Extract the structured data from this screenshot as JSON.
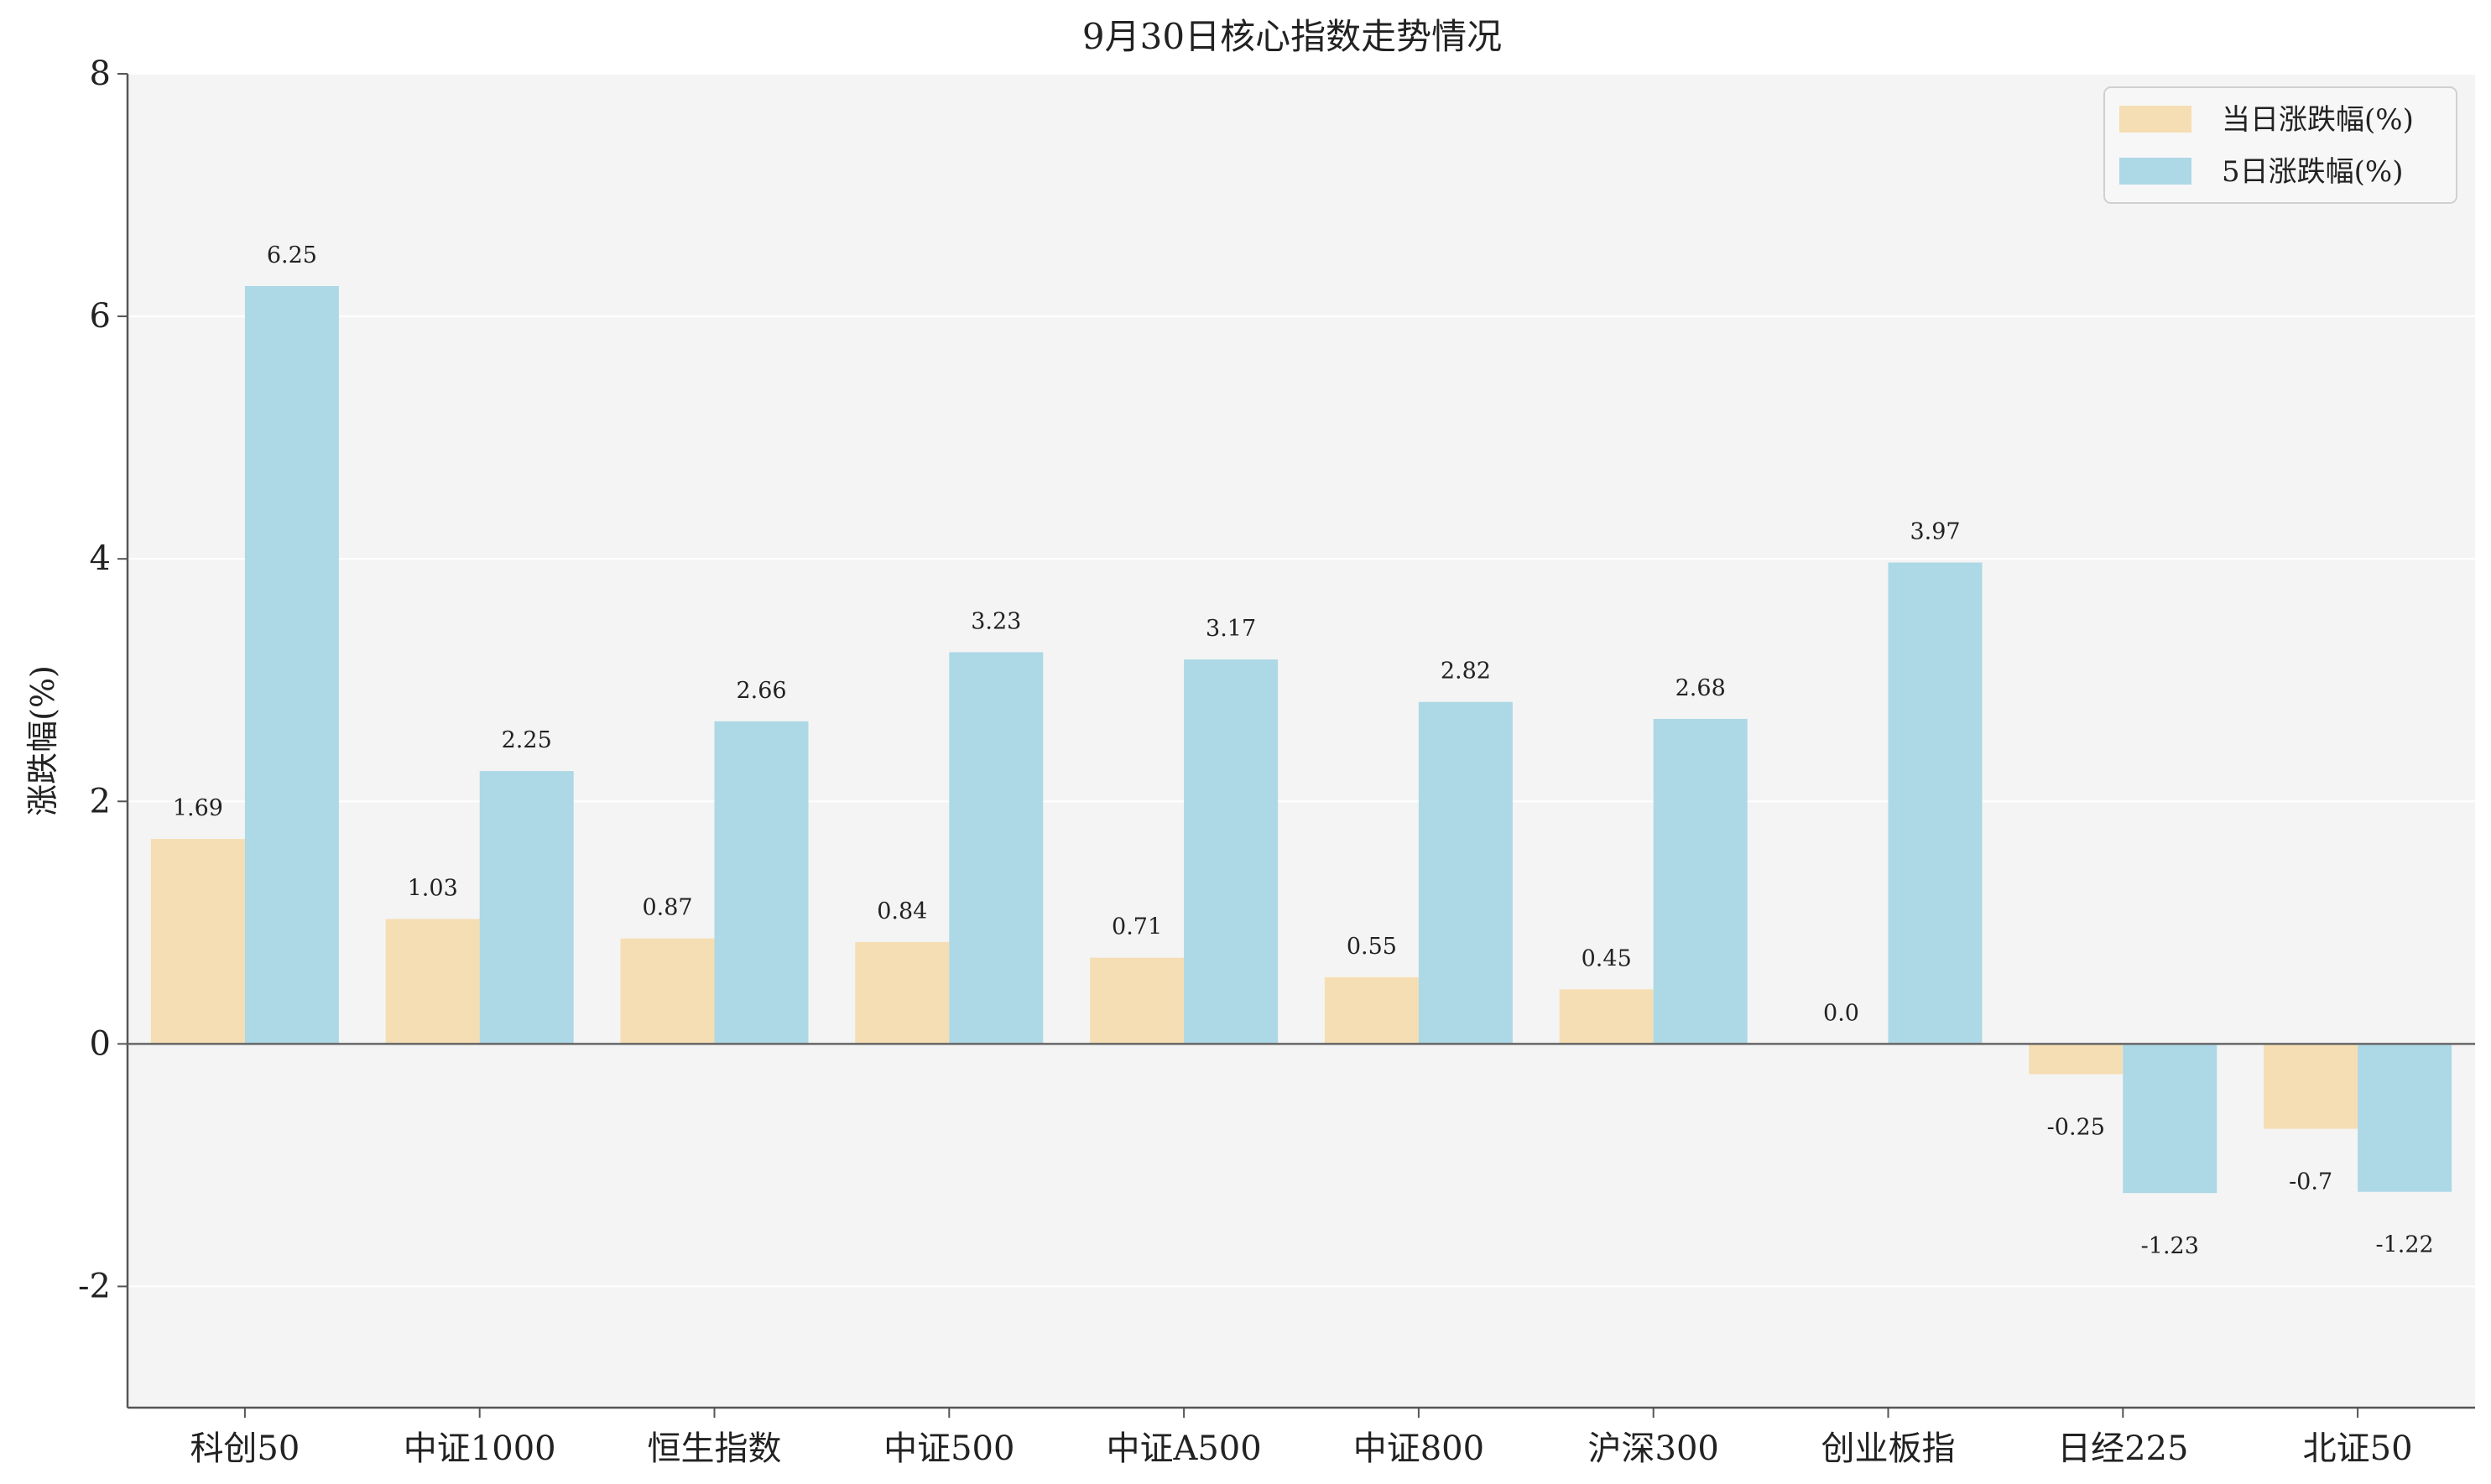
{
  "chart_data": {
    "type": "bar",
    "title": "9月30日核心指数走势情况",
    "xlabel": "",
    "ylabel": "涨跌幅(%)",
    "ylim": [
      -3,
      8
    ],
    "yticks": [
      -2,
      0,
      2,
      4,
      6,
      8
    ],
    "grid": "horizontal",
    "legend_position": "top-right",
    "categories": [
      "科创50",
      "中证1000",
      "恒生指数",
      "中证500",
      "中证A500",
      "中证800",
      "沪深300",
      "创业板指",
      "日经225",
      "北证50"
    ],
    "series": [
      {
        "name": "当日涨跌幅(%)",
        "color": "#f5deb3",
        "values": [
          1.69,
          1.03,
          0.87,
          0.84,
          0.71,
          0.55,
          0.45,
          0.0,
          -0.25,
          -0.7
        ],
        "labels": [
          "1.69",
          "1.03",
          "0.87",
          "0.84",
          "0.71",
          "0.55",
          "0.45",
          "0.0",
          "-0.25",
          "-0.7"
        ]
      },
      {
        "name": "5日涨跌幅(%)",
        "color": "#add8e6",
        "values": [
          6.25,
          2.25,
          2.66,
          3.23,
          3.17,
          2.82,
          2.68,
          3.97,
          -1.23,
          -1.22
        ],
        "labels": [
          "6.25",
          "2.25",
          "2.66",
          "3.23",
          "3.17",
          "2.82",
          "2.68",
          "3.97",
          "-1.23",
          "-1.22"
        ]
      }
    ]
  },
  "colors": {
    "plot_background": "#f4f4f4",
    "axis": "#555555",
    "grid": "#ffffff"
  }
}
